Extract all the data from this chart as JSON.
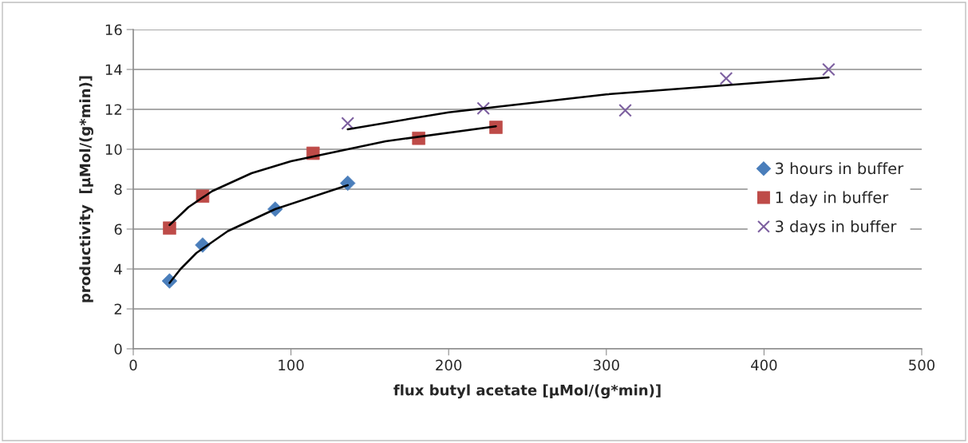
{
  "chart_data": {
    "type": "scatter",
    "xlabel": "flux butyl acetate [µMol/(g*min)]",
    "ylabel": "productivity  [µMol/(g*min)]",
    "xlim": [
      0,
      500
    ],
    "xticks": [
      0,
      100,
      200,
      300,
      400,
      500
    ],
    "ylim": [
      0,
      16
    ],
    "yticks": [
      0,
      2,
      4,
      6,
      8,
      10,
      12,
      14,
      16
    ],
    "grid": "y",
    "legend": "right",
    "series": [
      {
        "name": "3 hours in buffer",
        "color": "#4a7ebb",
        "marker": "diamond",
        "x": [
          23,
          44,
          90,
          136
        ],
        "values": [
          3.4,
          5.2,
          7.0,
          8.3
        ]
      },
      {
        "name": "1 day in buffer",
        "color": "#be4b48",
        "marker": "square",
        "x": [
          23,
          44,
          114,
          181,
          230
        ],
        "values": [
          6.05,
          7.65,
          9.8,
          10.55,
          11.1
        ]
      },
      {
        "name": "3 days in buffer",
        "color": "#7d60a0",
        "marker": "cross",
        "x": [
          136,
          222,
          312,
          376,
          441
        ],
        "values": [
          11.3,
          12.05,
          11.95,
          13.55,
          14.0
        ]
      },
      {
        "type": "line",
        "color": "#000000",
        "marker": "none",
        "x": [
          23,
          30,
          40,
          60,
          90,
          136
        ],
        "values": [
          3.3,
          4.0,
          4.8,
          5.9,
          7.0,
          8.2
        ]
      },
      {
        "type": "line",
        "color": "#000000",
        "marker": "none",
        "x": [
          23,
          35,
          50,
          75,
          100,
          160,
          230
        ],
        "values": [
          6.2,
          7.1,
          7.9,
          8.8,
          9.4,
          10.4,
          11.15
        ]
      },
      {
        "type": "line",
        "color": "#000000",
        "marker": "none",
        "x": [
          136,
          200,
          300,
          441
        ],
        "values": [
          11.0,
          11.85,
          12.75,
          13.6
        ]
      }
    ]
  }
}
